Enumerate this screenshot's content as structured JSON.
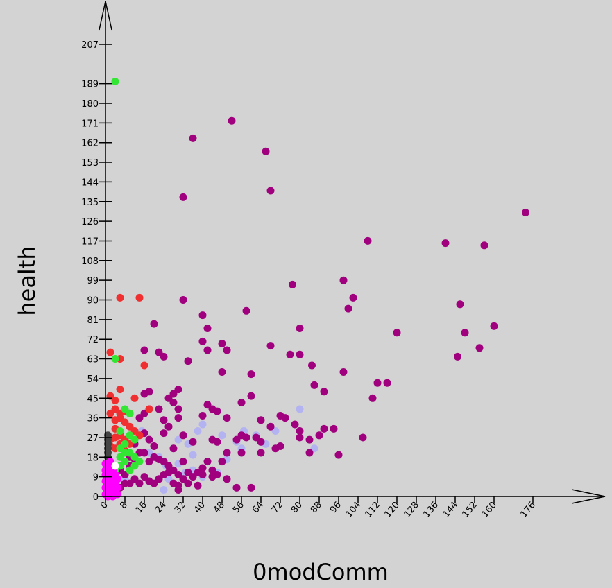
{
  "chart_data": {
    "type": "scatter",
    "xlabel": "0modComm",
    "ylabel": "health",
    "xlim": [
      0,
      176
    ],
    "ylim": [
      0,
      207
    ],
    "x_ticks": [
      0,
      8,
      16,
      24,
      32,
      40,
      48,
      56,
      64,
      72,
      80,
      88,
      96,
      104,
      112,
      120,
      128,
      136,
      144,
      152,
      160,
      176
    ],
    "y_ticks": [
      0,
      9,
      18,
      27,
      36,
      45,
      54,
      63,
      72,
      81,
      90,
      99,
      108,
      117,
      126,
      135,
      144,
      153,
      162,
      171,
      180,
      189,
      207
    ],
    "grid": false,
    "series": [
      {
        "color": "#b3b3f2",
        "points": [
          [
            10,
            28
          ],
          [
            12,
            25
          ],
          [
            15,
            30
          ],
          [
            18,
            20
          ],
          [
            22,
            18
          ],
          [
            25,
            14
          ],
          [
            28,
            22
          ],
          [
            30,
            15
          ],
          [
            34,
            24
          ],
          [
            36,
            19
          ],
          [
            40,
            33
          ],
          [
            42,
            16
          ],
          [
            44,
            26
          ],
          [
            48,
            28
          ],
          [
            50,
            17
          ],
          [
            54,
            25
          ],
          [
            57,
            30
          ],
          [
            62,
            28
          ],
          [
            66,
            24
          ],
          [
            70,
            30
          ],
          [
            80,
            40
          ],
          [
            86,
            22
          ],
          [
            36,
            12
          ],
          [
            26,
            8
          ],
          [
            24,
            3
          ],
          [
            40,
            9
          ],
          [
            33,
            11
          ],
          [
            38,
            30
          ],
          [
            8,
            8
          ],
          [
            30,
            26
          ],
          [
            46,
            11
          ],
          [
            56,
            22
          ]
        ]
      },
      {
        "color": "#a0007d",
        "points": [
          [
            36,
            164
          ],
          [
            52,
            172
          ],
          [
            32,
            137
          ],
          [
            66,
            158
          ],
          [
            68,
            140
          ],
          [
            108,
            117
          ],
          [
            173,
            130
          ],
          [
            140,
            116
          ],
          [
            156,
            115
          ],
          [
            77,
            97
          ],
          [
            98,
            99
          ],
          [
            102,
            91
          ],
          [
            100,
            86
          ],
          [
            146,
            88
          ],
          [
            58,
            85
          ],
          [
            32,
            90
          ],
          [
            40,
            83
          ],
          [
            20,
            79
          ],
          [
            42,
            77
          ],
          [
            80,
            77
          ],
          [
            160,
            78
          ],
          [
            148,
            75
          ],
          [
            120,
            75
          ],
          [
            40,
            71
          ],
          [
            48,
            70
          ],
          [
            68,
            69
          ],
          [
            42,
            67
          ],
          [
            50,
            67
          ],
          [
            16,
            67
          ],
          [
            22,
            66
          ],
          [
            24,
            64
          ],
          [
            76,
            65
          ],
          [
            80,
            65
          ],
          [
            85,
            60
          ],
          [
            145,
            64
          ],
          [
            154,
            68
          ],
          [
            34,
            62
          ],
          [
            48,
            57
          ],
          [
            60,
            56
          ],
          [
            98,
            57
          ],
          [
            112,
            52
          ],
          [
            116,
            52
          ],
          [
            86,
            51
          ],
          [
            90,
            48
          ],
          [
            110,
            45
          ],
          [
            30,
            49
          ],
          [
            28,
            47
          ],
          [
            18,
            48
          ],
          [
            16,
            47
          ],
          [
            26,
            45
          ],
          [
            60,
            46
          ],
          [
            56,
            43
          ],
          [
            28,
            43
          ],
          [
            42,
            42
          ],
          [
            44,
            40
          ],
          [
            46,
            39
          ],
          [
            40,
            37
          ],
          [
            30,
            40
          ],
          [
            22,
            40
          ],
          [
            18,
            40
          ],
          [
            16,
            38
          ],
          [
            14,
            36
          ],
          [
            24,
            35
          ],
          [
            26,
            32
          ],
          [
            30,
            36
          ],
          [
            50,
            36
          ],
          [
            64,
            35
          ],
          [
            68,
            32
          ],
          [
            72,
            37
          ],
          [
            74,
            36
          ],
          [
            78,
            33
          ],
          [
            80,
            30
          ],
          [
            90,
            31
          ],
          [
            94,
            31
          ],
          [
            64,
            25
          ],
          [
            58,
            27
          ],
          [
            50,
            20
          ],
          [
            54,
            26
          ],
          [
            56,
            28
          ],
          [
            44,
            26
          ],
          [
            46,
            25
          ],
          [
            36,
            25
          ],
          [
            32,
            28
          ],
          [
            28,
            22
          ],
          [
            24,
            29
          ],
          [
            20,
            23
          ],
          [
            18,
            26
          ],
          [
            16,
            29
          ],
          [
            12,
            24
          ],
          [
            14,
            20
          ],
          [
            10,
            18
          ],
          [
            12,
            17
          ],
          [
            16,
            20
          ],
          [
            18,
            16
          ],
          [
            20,
            18
          ],
          [
            22,
            17
          ],
          [
            24,
            16
          ],
          [
            26,
            14
          ],
          [
            28,
            12
          ],
          [
            30,
            10
          ],
          [
            32,
            16
          ],
          [
            34,
            11
          ],
          [
            36,
            9
          ],
          [
            38,
            11
          ],
          [
            40,
            10
          ],
          [
            42,
            16
          ],
          [
            44,
            12
          ],
          [
            46,
            10
          ],
          [
            48,
            16
          ],
          [
            50,
            8
          ],
          [
            56,
            20
          ],
          [
            64,
            20
          ],
          [
            70,
            22
          ],
          [
            72,
            23
          ],
          [
            84,
            20
          ],
          [
            80,
            27
          ],
          [
            84,
            26
          ],
          [
            88,
            28
          ],
          [
            96,
            19
          ],
          [
            106,
            27
          ],
          [
            6,
            12
          ],
          [
            8,
            10
          ],
          [
            10,
            14
          ],
          [
            12,
            8
          ],
          [
            14,
            6
          ],
          [
            16,
            9
          ],
          [
            18,
            7
          ],
          [
            20,
            6
          ],
          [
            22,
            8
          ],
          [
            24,
            10
          ],
          [
            26,
            11
          ],
          [
            28,
            6
          ],
          [
            30,
            5
          ],
          [
            32,
            8
          ],
          [
            34,
            6
          ],
          [
            38,
            5
          ],
          [
            40,
            13
          ],
          [
            44,
            9
          ],
          [
            54,
            4
          ],
          [
            60,
            4
          ],
          [
            62,
            27
          ],
          [
            30,
            3
          ],
          [
            8,
            6
          ],
          [
            6,
            4
          ],
          [
            10,
            6
          ]
        ]
      },
      {
        "color": "#f03030",
        "points": [
          [
            6,
            91
          ],
          [
            14,
            91
          ],
          [
            2,
            66
          ],
          [
            6,
            63
          ],
          [
            16,
            60
          ],
          [
            6,
            49
          ],
          [
            12,
            45
          ],
          [
            18,
            40
          ],
          [
            4,
            44
          ],
          [
            2,
            46
          ],
          [
            4,
            40
          ],
          [
            2,
            38
          ],
          [
            6,
            38
          ],
          [
            8,
            39
          ],
          [
            10,
            38
          ],
          [
            4,
            35
          ],
          [
            6,
            36
          ],
          [
            8,
            34
          ],
          [
            10,
            32
          ],
          [
            12,
            30
          ],
          [
            14,
            28
          ],
          [
            4,
            31
          ],
          [
            6,
            28
          ],
          [
            8,
            26
          ],
          [
            10,
            24
          ],
          [
            2,
            23
          ],
          [
            4,
            22
          ],
          [
            6,
            24
          ],
          [
            8,
            21
          ],
          [
            2,
            26
          ],
          [
            4,
            27
          ]
        ]
      },
      {
        "color": "#33e633",
        "points": [
          [
            4,
            190
          ],
          [
            4,
            63
          ],
          [
            8,
            40
          ],
          [
            10,
            38
          ],
          [
            6,
            30
          ],
          [
            10,
            28
          ],
          [
            12,
            26
          ],
          [
            8,
            24
          ],
          [
            6,
            22
          ],
          [
            10,
            20
          ],
          [
            12,
            18
          ],
          [
            14,
            16
          ],
          [
            8,
            16
          ],
          [
            6,
            14
          ],
          [
            4,
            12
          ],
          [
            10,
            12
          ],
          [
            12,
            14
          ],
          [
            6,
            18
          ],
          [
            8,
            20
          ]
        ]
      },
      {
        "color": "#444444",
        "points": [
          [
            1,
            28
          ],
          [
            1,
            26
          ],
          [
            1,
            24
          ],
          [
            1,
            22
          ],
          [
            1,
            20
          ],
          [
            1,
            18
          ]
        ]
      },
      {
        "color": "#ff00ff",
        "points": [
          [
            0,
            15
          ],
          [
            1,
            12
          ],
          [
            2,
            10
          ],
          [
            3,
            8
          ],
          [
            4,
            6
          ],
          [
            5,
            4
          ],
          [
            0,
            10
          ],
          [
            1,
            6
          ],
          [
            2,
            4
          ],
          [
            3,
            2
          ],
          [
            4,
            1
          ],
          [
            0,
            4
          ],
          [
            1,
            2
          ],
          [
            2,
            1
          ],
          [
            0,
            1
          ],
          [
            2,
            8
          ],
          [
            3,
            12
          ],
          [
            1,
            14
          ],
          [
            4,
            10
          ],
          [
            5,
            8
          ],
          [
            3,
            5
          ],
          [
            0,
            7
          ],
          [
            2,
            14
          ],
          [
            1,
            9
          ],
          [
            4,
            3
          ],
          [
            5,
            1
          ],
          [
            0,
            12
          ],
          [
            3,
            0
          ],
          [
            1,
            0
          ],
          [
            2,
            16
          ]
        ]
      },
      {
        "color": "#ffffff",
        "points": [
          [
            4,
            14
          ]
        ]
      }
    ]
  }
}
